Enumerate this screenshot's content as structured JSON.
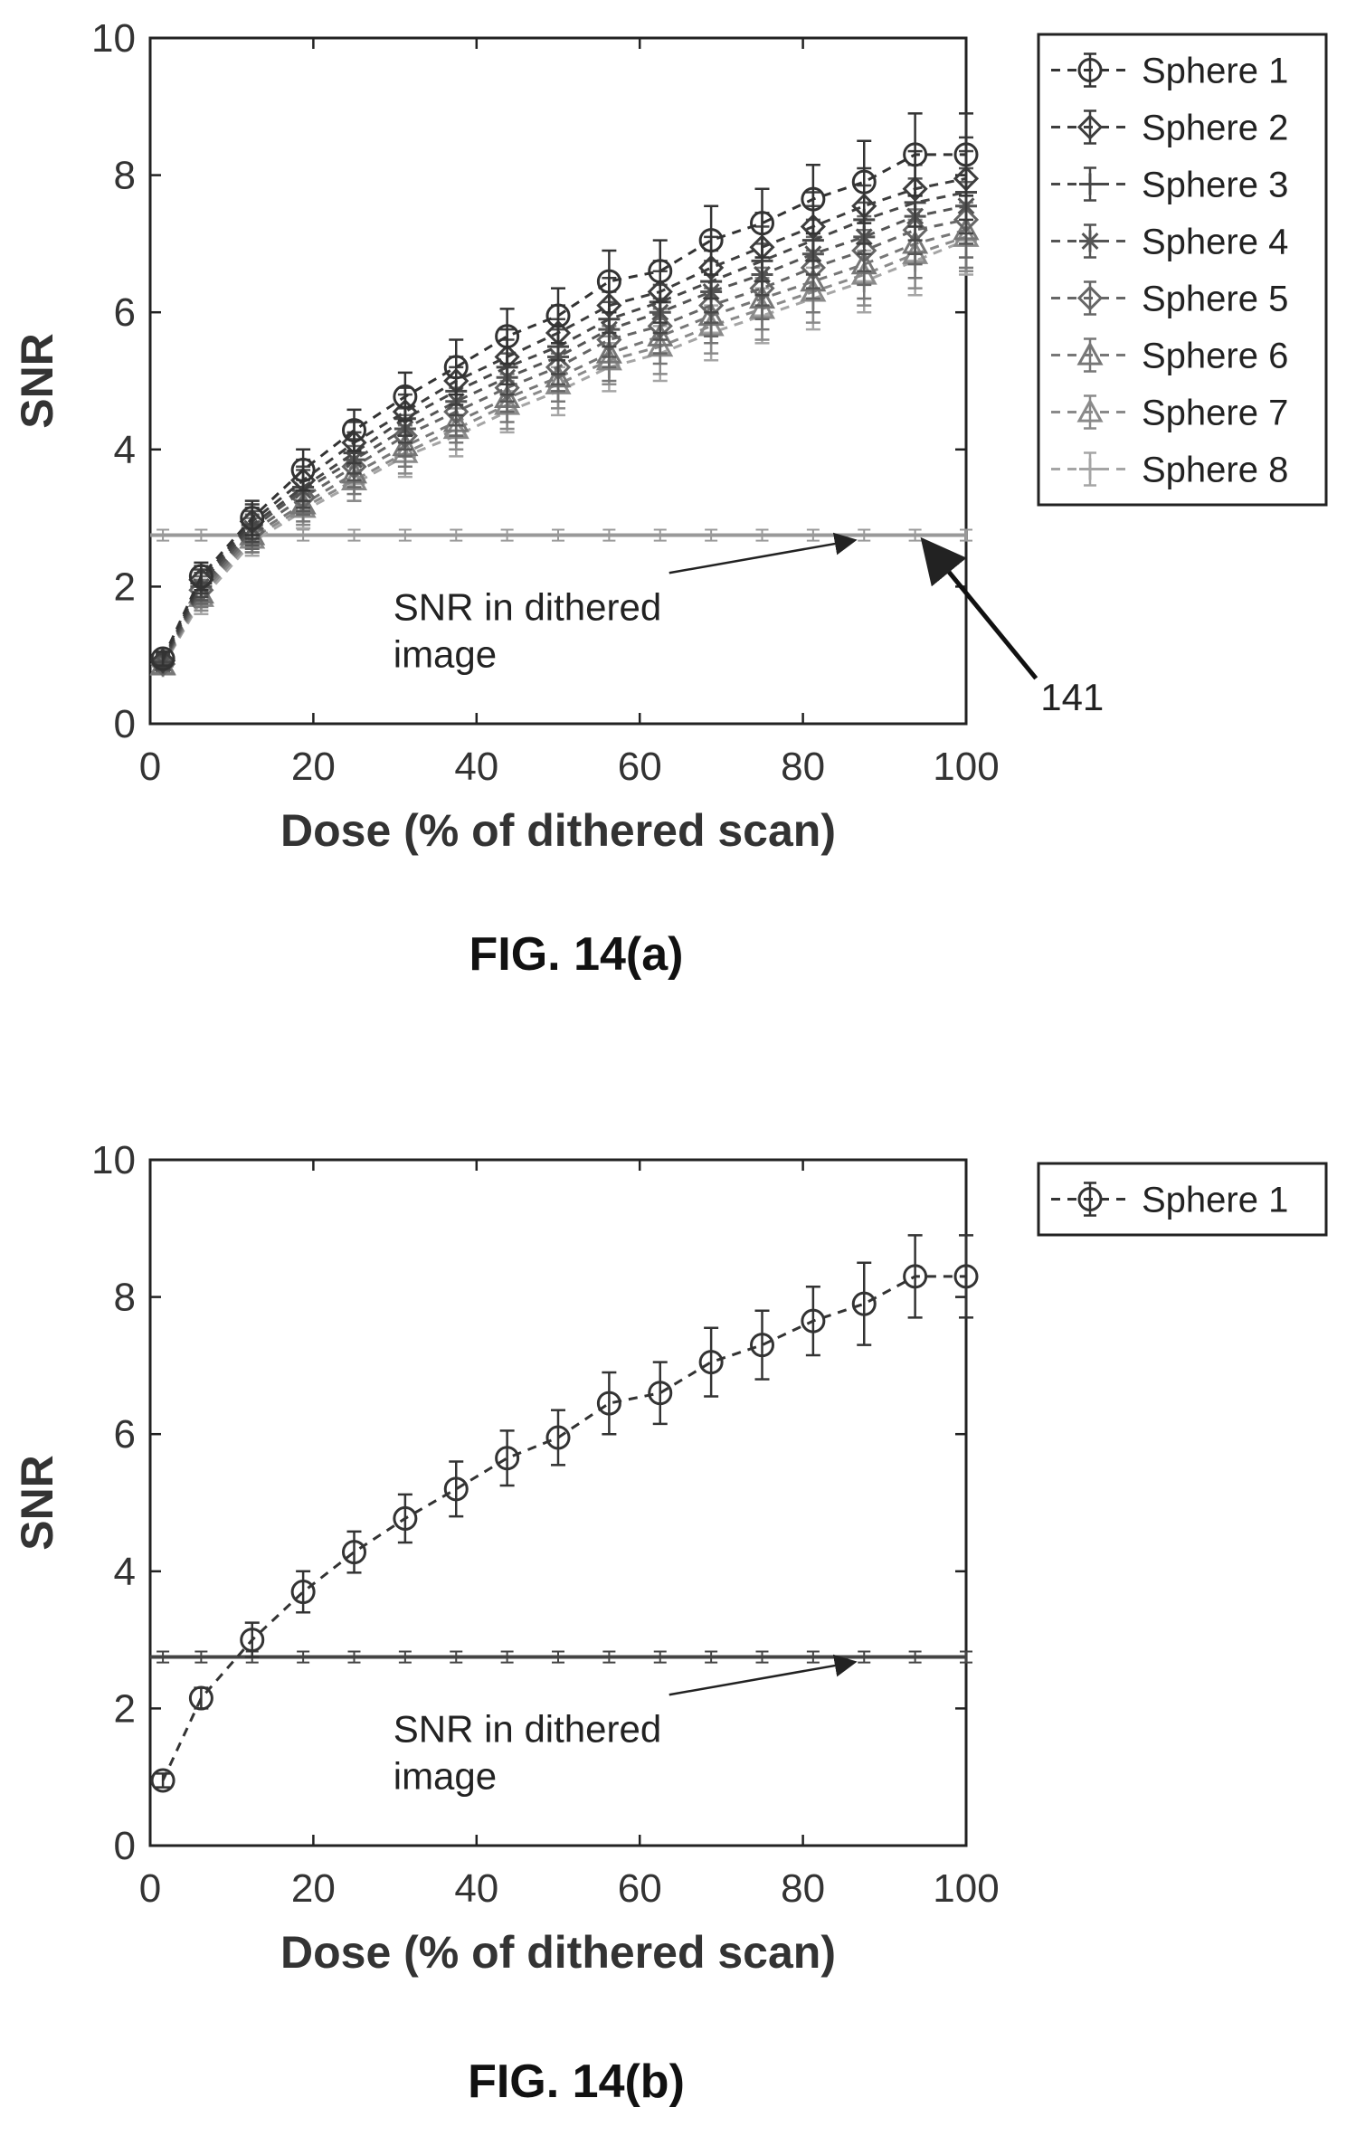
{
  "chart_data": [
    {
      "type": "line",
      "title": "",
      "caption": "FIG. 14(a)",
      "xlabel": "Dose (% of dithered scan)",
      "ylabel": "SNR",
      "xlim": [
        0,
        100
      ],
      "ylim": [
        0,
        10
      ],
      "xticks": [
        0,
        20,
        40,
        60,
        80,
        100
      ],
      "yticks": [
        0,
        2,
        4,
        6,
        8,
        10
      ],
      "grid": false,
      "legend_position": "outside-right",
      "x": [
        1.5625,
        6.25,
        12.5,
        18.75,
        25,
        31.25,
        37.5,
        43.75,
        50,
        56.25,
        62.5,
        68.75,
        75,
        81.25,
        87.5,
        93.75,
        100
      ],
      "series": [
        {
          "name": "Sphere 1",
          "color": "#333333",
          "marker": "circle",
          "values": [
            0.95,
            2.15,
            3.0,
            3.7,
            4.28,
            4.77,
            5.2,
            5.65,
            5.95,
            6.45,
            6.6,
            7.05,
            7.3,
            7.65,
            7.9,
            8.3,
            8.3
          ],
          "errors": [
            0.1,
            0.2,
            0.25,
            0.3,
            0.3,
            0.35,
            0.4,
            0.4,
            0.4,
            0.45,
            0.45,
            0.5,
            0.5,
            0.5,
            0.6,
            0.6,
            0.6
          ]
        },
        {
          "name": "Sphere 2",
          "color": "#3d3d3d",
          "marker": "diamond",
          "values": [
            0.92,
            2.1,
            2.95,
            3.55,
            4.1,
            4.55,
            5.0,
            5.35,
            5.7,
            6.1,
            6.3,
            6.65,
            6.95,
            7.25,
            7.55,
            7.8,
            7.95
          ],
          "errors": [
            0.1,
            0.2,
            0.25,
            0.3,
            0.3,
            0.35,
            0.35,
            0.4,
            0.4,
            0.4,
            0.45,
            0.45,
            0.5,
            0.5,
            0.55,
            0.55,
            0.6
          ]
        },
        {
          "name": "Sphere 3",
          "color": "#474747",
          "marker": "plus",
          "values": [
            0.9,
            2.05,
            2.9,
            3.45,
            3.95,
            4.45,
            4.85,
            5.2,
            5.5,
            5.9,
            6.15,
            6.45,
            6.75,
            7.05,
            7.35,
            7.6,
            7.75
          ],
          "errors": [
            0.1,
            0.2,
            0.25,
            0.3,
            0.3,
            0.35,
            0.35,
            0.4,
            0.4,
            0.4,
            0.45,
            0.45,
            0.5,
            0.5,
            0.5,
            0.55,
            0.6
          ]
        },
        {
          "name": "Sphere 4",
          "color": "#555555",
          "marker": "star",
          "values": [
            0.88,
            2.0,
            2.85,
            3.4,
            3.85,
            4.3,
            4.7,
            5.05,
            5.35,
            5.75,
            6.0,
            6.3,
            6.55,
            6.85,
            7.1,
            7.4,
            7.55
          ],
          "errors": [
            0.1,
            0.2,
            0.25,
            0.3,
            0.3,
            0.3,
            0.35,
            0.35,
            0.4,
            0.4,
            0.4,
            0.45,
            0.45,
            0.5,
            0.5,
            0.55,
            0.55
          ]
        },
        {
          "name": "Sphere 5",
          "color": "#666666",
          "marker": "diamond",
          "values": [
            0.87,
            1.95,
            2.8,
            3.3,
            3.75,
            4.2,
            4.55,
            4.9,
            5.2,
            5.6,
            5.8,
            6.1,
            6.35,
            6.65,
            6.9,
            7.2,
            7.35
          ],
          "errors": [
            0.1,
            0.2,
            0.25,
            0.25,
            0.3,
            0.3,
            0.35,
            0.35,
            0.35,
            0.4,
            0.4,
            0.45,
            0.45,
            0.45,
            0.5,
            0.5,
            0.55
          ]
        },
        {
          "name": "Sphere 6",
          "color": "#777777",
          "marker": "triangle",
          "values": [
            0.86,
            1.9,
            2.75,
            3.2,
            3.65,
            4.05,
            4.4,
            4.75,
            5.05,
            5.4,
            5.65,
            5.95,
            6.2,
            6.45,
            6.7,
            7.0,
            7.2
          ],
          "errors": [
            0.1,
            0.2,
            0.25,
            0.25,
            0.3,
            0.3,
            0.3,
            0.35,
            0.35,
            0.4,
            0.4,
            0.4,
            0.45,
            0.45,
            0.5,
            0.5,
            0.55
          ]
        },
        {
          "name": "Sphere 7",
          "color": "#8a8a8a",
          "marker": "triangle",
          "values": [
            0.85,
            1.85,
            2.7,
            3.15,
            3.55,
            3.95,
            4.3,
            4.65,
            4.95,
            5.3,
            5.5,
            5.8,
            6.05,
            6.3,
            6.55,
            6.85,
            7.1
          ],
          "errors": [
            0.1,
            0.2,
            0.2,
            0.25,
            0.3,
            0.3,
            0.3,
            0.35,
            0.35,
            0.35,
            0.4,
            0.4,
            0.45,
            0.45,
            0.45,
            0.5,
            0.5
          ]
        },
        {
          "name": "Sphere 8",
          "color": "#a5a5a5",
          "marker": "plus",
          "values": [
            0.84,
            1.8,
            2.65,
            3.1,
            3.5,
            3.9,
            4.2,
            4.55,
            4.85,
            5.2,
            5.4,
            5.7,
            5.95,
            6.2,
            6.45,
            6.75,
            7.05
          ],
          "errors": [
            0.1,
            0.2,
            0.2,
            0.25,
            0.25,
            0.3,
            0.3,
            0.3,
            0.35,
            0.35,
            0.4,
            0.4,
            0.4,
            0.45,
            0.45,
            0.5,
            0.5
          ]
        }
      ],
      "reference_line": {
        "value": 2.75,
        "error": 0.08,
        "color": "#999999"
      },
      "annotations": [
        {
          "text": "SNR in dithered image",
          "lines": [
            "SNR in dithered",
            "image"
          ],
          "x": 37,
          "y": 1.25,
          "arrow_to": [
            87,
            2.75
          ]
        },
        {
          "text": "141",
          "x": 113,
          "y": 0.2,
          "arrow_to": [
            94,
            2.75
          ]
        }
      ]
    },
    {
      "type": "line",
      "title": "",
      "caption": "FIG. 14(b)",
      "xlabel": "Dose (% of dithered scan)",
      "ylabel": "SNR",
      "xlim": [
        0,
        100
      ],
      "ylim": [
        0,
        10
      ],
      "xticks": [
        0,
        20,
        40,
        60,
        80,
        100
      ],
      "yticks": [
        0,
        2,
        4,
        6,
        8,
        10
      ],
      "grid": false,
      "legend_position": "outside-right",
      "x": [
        1.5625,
        6.25,
        12.5,
        18.75,
        25,
        31.25,
        37.5,
        43.75,
        50,
        56.25,
        62.5,
        68.75,
        75,
        81.25,
        87.5,
        93.75,
        100
      ],
      "series": [
        {
          "name": "Sphere 1",
          "color": "#333333",
          "marker": "circle",
          "values": [
            0.95,
            2.15,
            3.0,
            3.7,
            4.28,
            4.77,
            5.2,
            5.65,
            5.95,
            6.45,
            6.6,
            7.05,
            7.3,
            7.65,
            7.9,
            8.3,
            8.3
          ],
          "errors": [
            0.1,
            0.15,
            0.25,
            0.3,
            0.3,
            0.35,
            0.4,
            0.4,
            0.4,
            0.45,
            0.45,
            0.5,
            0.5,
            0.5,
            0.6,
            0.6,
            0.6
          ]
        }
      ],
      "reference_line": {
        "value": 2.75,
        "error": 0.08,
        "color": "#444444"
      },
      "annotations": [
        {
          "text": "SNR in dithered image",
          "lines": [
            "SNR in dithered",
            "image"
          ],
          "x": 37,
          "y": 1.25,
          "arrow_to": [
            87,
            2.75
          ]
        }
      ]
    }
  ]
}
